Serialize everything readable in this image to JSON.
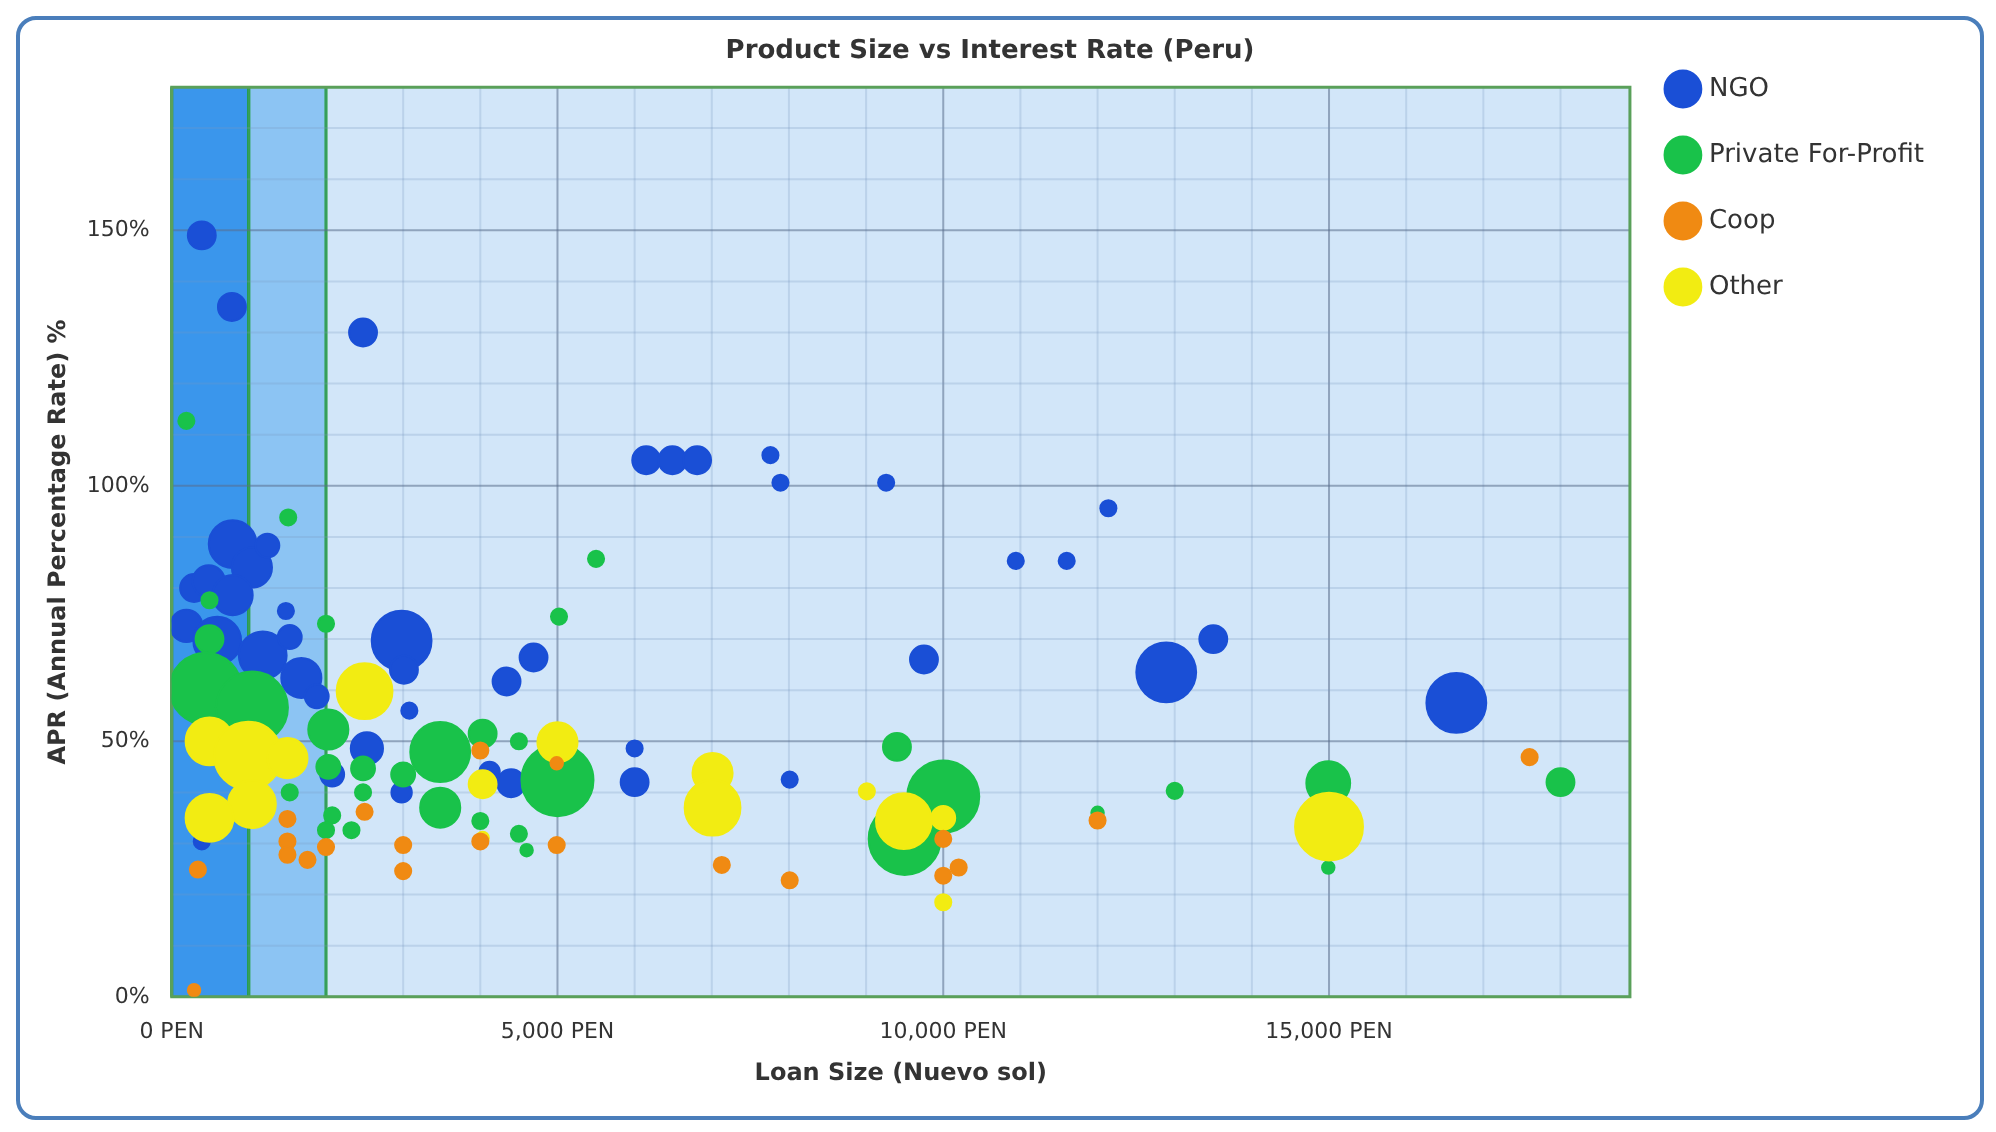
{
  "chart_data": {
    "type": "bubble",
    "title": "Product Size vs Interest Rate (Peru)",
    "xlabel": "Loan Size (Nuevo sol)",
    "ylabel": "APR (Annual Percentage Rate) %",
    "xlim": [
      0,
      18900
    ],
    "ylim": [
      0,
      178
    ],
    "xticks": [
      {
        "value": 0,
        "label": "0 PEN"
      },
      {
        "value": 1000,
        "label": null
      },
      {
        "value": 2000,
        "label": null
      },
      {
        "value": 3000,
        "label": null
      },
      {
        "value": 4000,
        "label": null
      },
      {
        "value": 5000,
        "label": "5,000 PEN"
      },
      {
        "value": 6000,
        "label": null
      },
      {
        "value": 7000,
        "label": null
      },
      {
        "value": 8000,
        "label": null
      },
      {
        "value": 9000,
        "label": null
      },
      {
        "value": 10000,
        "label": "10,000 PEN"
      },
      {
        "value": 11000,
        "label": null
      },
      {
        "value": 12000,
        "label": null
      },
      {
        "value": 13000,
        "label": null
      },
      {
        "value": 14000,
        "label": null
      },
      {
        "value": 15000,
        "label": "15,000 PEN"
      },
      {
        "value": 16000,
        "label": null
      },
      {
        "value": 17000,
        "label": null
      },
      {
        "value": 18000,
        "label": null
      }
    ],
    "yticks": [
      {
        "value": 0,
        "label": "0%"
      },
      {
        "value": 10,
        "label": null
      },
      {
        "value": 20,
        "label": null
      },
      {
        "value": 30,
        "label": null
      },
      {
        "value": 40,
        "label": null
      },
      {
        "value": 50,
        "label": "50%"
      },
      {
        "value": 60,
        "label": null
      },
      {
        "value": 70,
        "label": null
      },
      {
        "value": 80,
        "label": null
      },
      {
        "value": 90,
        "label": null
      },
      {
        "value": 100,
        "label": "100%"
      },
      {
        "value": 110,
        "label": null
      },
      {
        "value": 120,
        "label": null
      },
      {
        "value": 130,
        "label": null
      },
      {
        "value": 140,
        "label": null
      },
      {
        "value": 150,
        "label": "150%"
      },
      {
        "value": 160,
        "label": null
      },
      {
        "value": 170,
        "label": null
      }
    ],
    "grid": true,
    "legend": "right",
    "bands": [
      {
        "axis": "x",
        "from": 0,
        "to": 1000,
        "color": "#3a96ec"
      },
      {
        "axis": "x",
        "from": 1000,
        "to": 2000,
        "color": "#8cc4f3"
      }
    ],
    "series": [
      {
        "name": "NGO",
        "color": "#1a4fd6",
        "x": [
          390,
          780,
          2480,
          6150,
          6490,
          6810,
          7760,
          7890,
          9260,
          10940,
          11600,
          12140,
          9750,
          6000,
          6000,
          8010,
          12890,
          13500,
          16650,
          2980,
          3010,
          4690,
          4340,
          3080,
          2530,
          4400,
          2980,
          4120,
          790,
          1040,
          1240,
          290,
          480,
          190,
          590,
          1180,
          1530,
          1680,
          1480,
          1880,
          390,
          2080,
          790
        ],
        "values": [
          149,
          135,
          130,
          105,
          105,
          105,
          106,
          100.6,
          100.6,
          85.3,
          85.3,
          95.6,
          66,
          48.6,
          42,
          42.5,
          63.5,
          70,
          57.5,
          69.7,
          64,
          66.4,
          61.7,
          56,
          48.6,
          41.8,
          40,
          44,
          88.6,
          84,
          88.3,
          80,
          81.3,
          72.6,
          69.7,
          66.8,
          70.4,
          62.4,
          75.5,
          58.8,
          30.4,
          43.5,
          78.6
        ],
        "sizes": [
          0.15,
          0.15,
          0.15,
          0.15,
          0.15,
          0.15,
          0.05,
          0.05,
          0.05,
          0.05,
          0.05,
          0.05,
          0.15,
          0.05,
          0.15,
          0.05,
          0.69,
          0.15,
          0.69,
          0.69,
          0.15,
          0.15,
          0.15,
          0.05,
          0.2,
          0.15,
          0.08,
          0.08,
          0.44,
          0.31,
          0.11,
          0.15,
          0.2,
          0.2,
          0.44,
          0.44,
          0.11,
          0.31,
          0.05,
          0.11,
          0.05,
          0.11,
          0.31
        ]
      },
      {
        "name": "Private For-Profit",
        "color": "#19c24a",
        "x": [
          190,
          1510,
          5500,
          5020,
          2000,
          490,
          490,
          440,
          1040,
          2030,
          2030,
          2480,
          3480,
          3480,
          3000,
          4030,
          4500,
          5000,
          4000,
          4500,
          4600,
          2080,
          2330,
          1530,
          2480,
          2000,
          9400,
          10000,
          9500,
          12000,
          13000,
          14990,
          18000,
          14990
        ],
        "values": [
          112.7,
          93.8,
          85.7,
          74.4,
          73,
          77.6,
          70,
          60.3,
          56.6,
          52.3,
          45,
          44.7,
          47.9,
          37,
          43.5,
          51.5,
          50,
          42.4,
          34.4,
          31.9,
          28.7,
          35.5,
          32.6,
          40,
          40,
          32.6,
          48.9,
          39.2,
          30.9,
          36,
          40.3,
          41.8,
          42,
          25.3
        ],
        "sizes": [
          0.05,
          0.05,
          0.05,
          0.05,
          0.05,
          0.05,
          0.15,
          1,
          1,
          0.31,
          0.11,
          0.11,
          0.69,
          0.31,
          0.11,
          0.15,
          0.05,
          1,
          0.05,
          0.05,
          0.03,
          0.05,
          0.05,
          0.05,
          0.05,
          0.05,
          0.15,
          1,
          1,
          0.03,
          0.05,
          0.37,
          0.15,
          0.03
        ]
      },
      {
        "name": "Coop",
        "color": "#f08a12",
        "x": [
          290,
          340,
          1500,
          1500,
          1500,
          1760,
          2000,
          2500,
          3000,
          3000,
          4000,
          4000,
          4990,
          4990,
          7130,
          8010,
          10000,
          10000,
          10200,
          12000,
          17600
        ],
        "values": [
          1.3,
          24.9,
          34.8,
          30.4,
          27.8,
          26.8,
          29.3,
          36.2,
          29.7,
          24.6,
          48.2,
          30.4,
          29.7,
          45.7,
          25.8,
          22.8,
          30.9,
          23.7,
          25.3,
          34.5,
          46.9
        ],
        "sizes": [
          0.03,
          0.05,
          0.05,
          0.05,
          0.05,
          0.05,
          0.05,
          0.05,
          0.05,
          0.05,
          0.05,
          0.05,
          0.05,
          0.03,
          0.05,
          0.05,
          0.05,
          0.05,
          0.05,
          0.05,
          0.05
        ]
      },
      {
        "name": "Other",
        "color": "#f2ec12",
        "x": [
          490,
          990,
          1040,
          490,
          1500,
          2500,
          4030,
          4030,
          5000,
          7010,
          7010,
          9010,
          9490,
          10000,
          10000,
          15000
        ],
        "values": [
          50,
          47.2,
          37.7,
          35,
          46.7,
          59.8,
          41.6,
          31.1,
          49.8,
          43.8,
          37,
          40.2,
          34.4,
          35,
          18.5,
          33.3
        ],
        "sizes": [
          0.44,
          0.89,
          0.44,
          0.44,
          0.31,
          0.6,
          0.15,
          0.03,
          0.31,
          0.31,
          0.6,
          0.05,
          0.6,
          0.11,
          0.05,
          0.89
        ]
      }
    ]
  }
}
